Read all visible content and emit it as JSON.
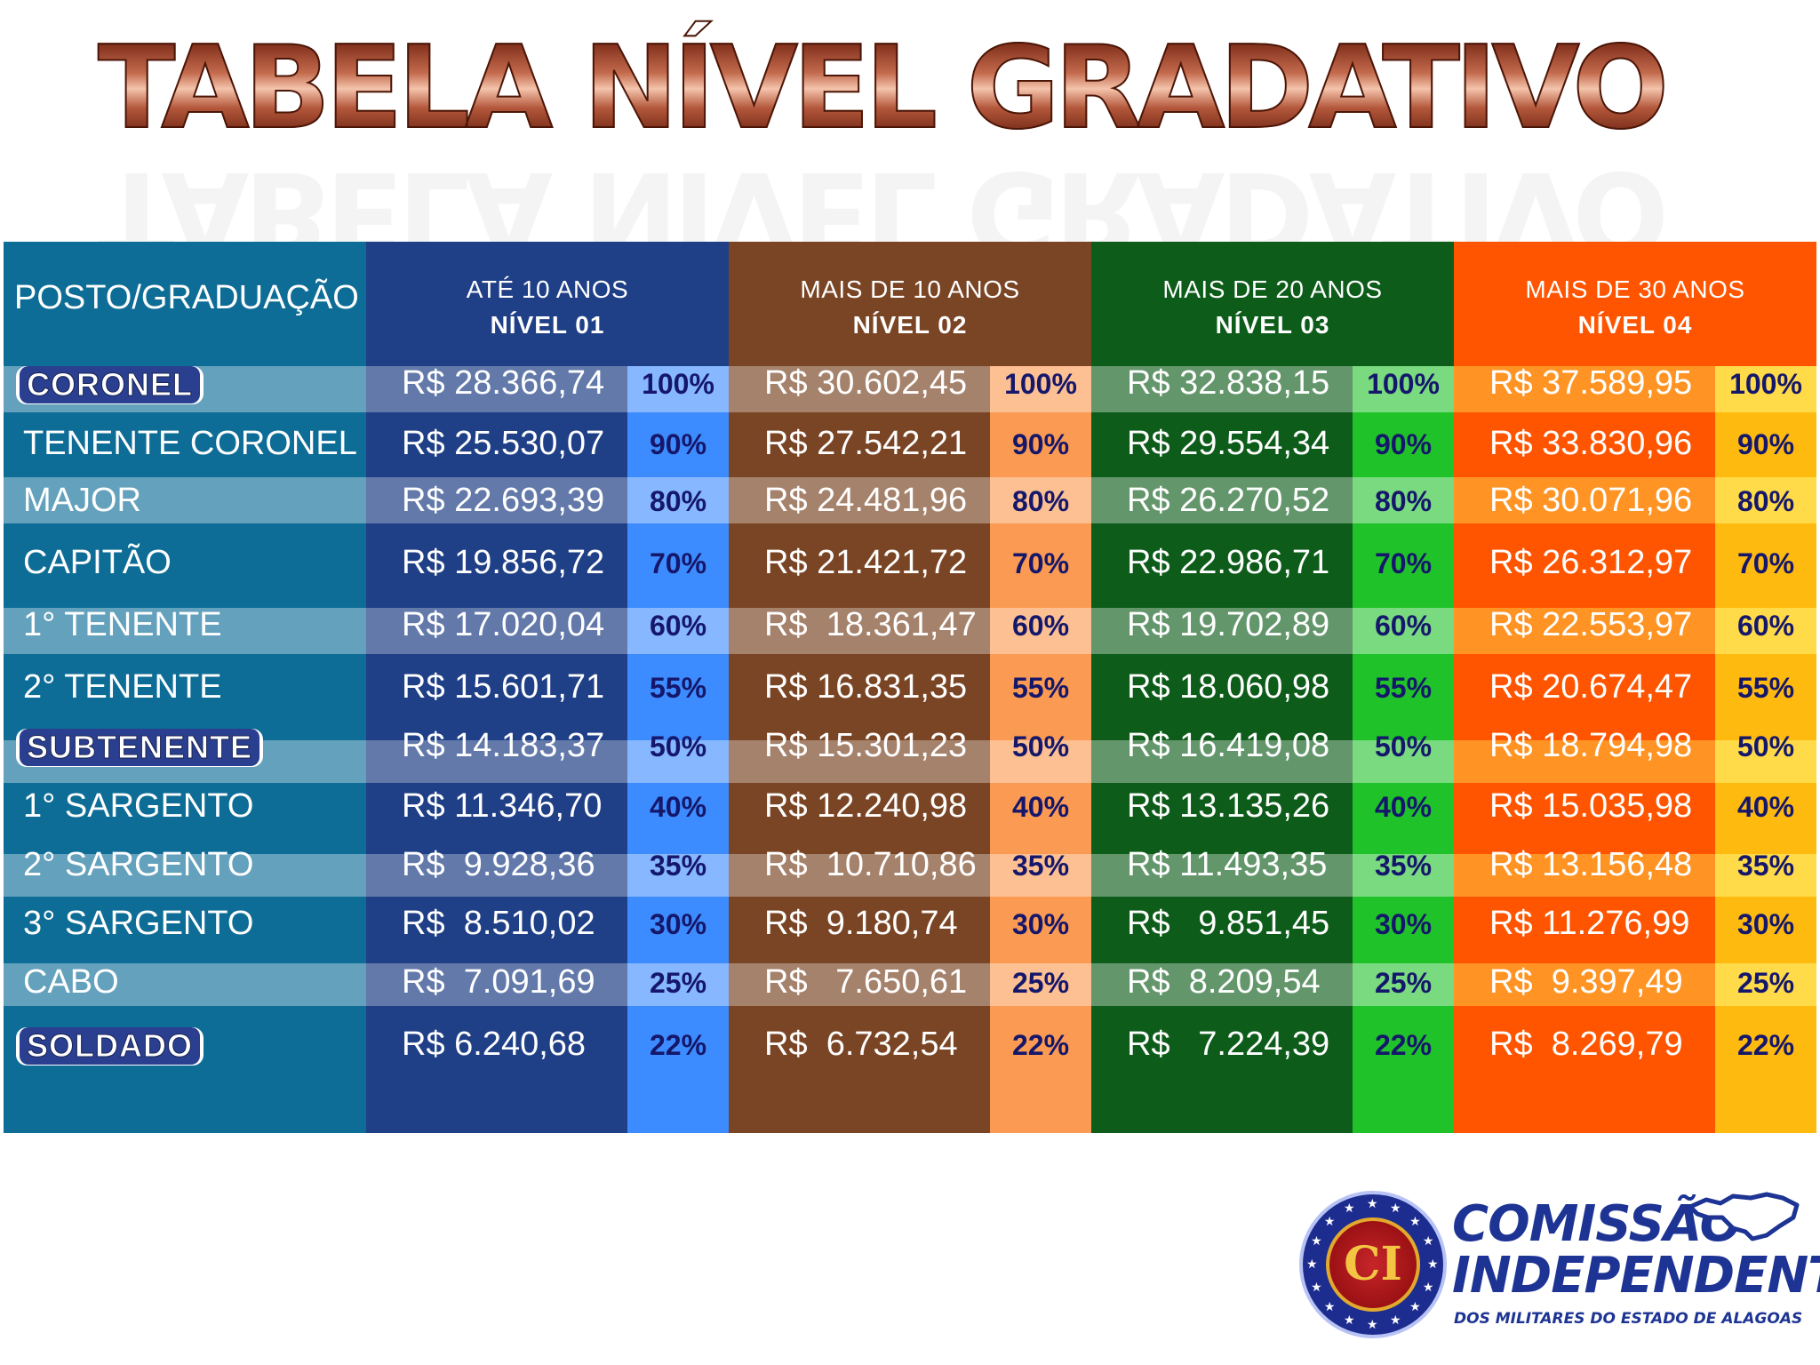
{
  "title": {
    "word1": "TABELA",
    "word2": "NÍVEL",
    "word3": "GRADATIVO"
  },
  "table": {
    "posto_header": "POSTO/GRADUAÇÃO",
    "levels": [
      {
        "years": "ATÉ 10 ANOS",
        "level": "NÍVEL 01"
      },
      {
        "years": "MAIS DE 10 ANOS",
        "level": "NÍVEL 02"
      },
      {
        "years": "MAIS DE 20 ANOS",
        "level": "NÍVEL 03"
      },
      {
        "years": "MAIS DE 30 ANOS",
        "level": "NÍVEL 04"
      }
    ],
    "rows": [
      {
        "rank": "CORONEL",
        "highlight": true,
        "pct": "100%",
        "values": [
          "R$ 28.366,74",
          "R$ 30.602,45",
          "R$ 32.838,15",
          "R$ 37.589,95"
        ]
      },
      {
        "rank": "TENENTE CORONEL",
        "highlight": false,
        "pct": "90%",
        "values": [
          "R$ 25.530,07",
          "R$ 27.542,21",
          "R$ 29.554,34",
          "R$ 33.830,96"
        ]
      },
      {
        "rank": "MAJOR",
        "highlight": false,
        "pct": "80%",
        "values": [
          "R$ 22.693,39",
          "R$ 24.481,96",
          "R$ 26.270,52",
          "R$ 30.071,96"
        ]
      },
      {
        "rank": "CAPITÃO",
        "highlight": false,
        "pct": "70%",
        "values": [
          "R$ 19.856,72",
          "R$ 21.421,72",
          "R$ 22.986,71",
          "R$ 26.312,97"
        ]
      },
      {
        "rank": "1° TENENTE",
        "highlight": false,
        "pct": "60%",
        "values": [
          "R$ 17.020,04",
          "R$  18.361,47",
          "R$ 19.702,89",
          "R$ 22.553,97"
        ]
      },
      {
        "rank": "2° TENENTE",
        "highlight": false,
        "pct": "55%",
        "values": [
          "R$ 15.601,71",
          "R$ 16.831,35",
          "R$ 18.060,98",
          "R$ 20.674,47"
        ]
      },
      {
        "rank": "SUBTENENTE",
        "highlight": true,
        "pct": "50%",
        "values": [
          "R$ 14.183,37",
          "R$ 15.301,23",
          "R$ 16.419,08",
          "R$ 18.794,98"
        ]
      },
      {
        "rank": "1° SARGENTO",
        "highlight": false,
        "pct": "40%",
        "values": [
          "R$ 11.346,70",
          "R$ 12.240,98",
          "R$ 13.135,26",
          "R$ 15.035,98"
        ]
      },
      {
        "rank": "2° SARGENTO",
        "highlight": false,
        "pct": "35%",
        "values": [
          "R$  9.928,36",
          "R$  10.710,86",
          "R$ 11.493,35",
          "R$ 13.156,48"
        ]
      },
      {
        "rank": "3° SARGENTO",
        "highlight": false,
        "pct": "30%",
        "values": [
          "R$  8.510,02",
          "R$  9.180,74",
          "R$   9.851,45",
          "R$ 11.276,99"
        ]
      },
      {
        "rank": "CABO",
        "highlight": false,
        "pct": "25%",
        "values": [
          "R$  7.091,69",
          "R$   7.650,61",
          "R$  8.209,54",
          "R$  9.397,49"
        ]
      },
      {
        "rank": "SOLDADO",
        "highlight": true,
        "pct": "22%",
        "values": [
          "R$ 6.240,68",
          "R$  6.732,54",
          "R$   7.224,39",
          "R$  8.269,79"
        ]
      }
    ]
  },
  "logo": {
    "monogram": "CI",
    "line1": "COMISSÃO",
    "line2": "INDEPENDENTE",
    "line3": "DOS MILITARES DO ESTADO DE ALAGOAS"
  },
  "colors": {
    "posto": "#0e6d96",
    "nivel1": "#1f3f86",
    "nivel2": "#7a4525",
    "nivel3": "#0d5c1a",
    "nivel4": "#ff5500"
  }
}
